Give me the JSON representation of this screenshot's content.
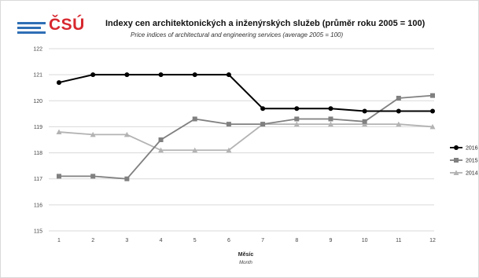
{
  "header": {
    "logo_text": "ČSÚ",
    "title_cz": "Indexy cen architektonických a inženýrských služeb (průměr roku 2005 = 100)",
    "title_en": "Price indices of architectural and engineering services (average 2005 = 100)"
  },
  "chart_data": {
    "type": "line",
    "title": "Indexy cen architektonických a inženýrských služeb (průměr roku 2005 = 100)",
    "subtitle": "Price indices of architectural and engineering services (average 2005 = 100)",
    "xlabel": "Měsíc",
    "xlabel_en": "Month",
    "ylabel": "",
    "ylim": [
      115,
      122
    ],
    "yticks": [
      "115",
      "116",
      "117",
      "118",
      "119",
      "120",
      "121",
      "122"
    ],
    "categories": [
      "1",
      "2",
      "3",
      "4",
      "5",
      "6",
      "7",
      "8",
      "9",
      "10",
      "11",
      "12"
    ],
    "grid": true,
    "legend_position": "right",
    "series": [
      {
        "name": "2016",
        "color": "#000000",
        "marker": "circle",
        "values": [
          120.7,
          121.0,
          121.0,
          121.0,
          121.0,
          121.0,
          119.7,
          119.7,
          119.7,
          119.6,
          119.6,
          119.6
        ]
      },
      {
        "name": "2015",
        "color": "#808080",
        "marker": "square",
        "values": [
          117.1,
          117.1,
          117.0,
          118.5,
          119.3,
          119.1,
          119.1,
          119.3,
          119.3,
          119.2,
          120.1,
          120.2
        ]
      },
      {
        "name": "2014",
        "color": "#b3b3b3",
        "marker": "triangle",
        "values": [
          118.8,
          118.7,
          118.7,
          118.1,
          118.1,
          118.1,
          119.1,
          119.1,
          119.1,
          119.1,
          119.1,
          119.0
        ]
      }
    ]
  }
}
